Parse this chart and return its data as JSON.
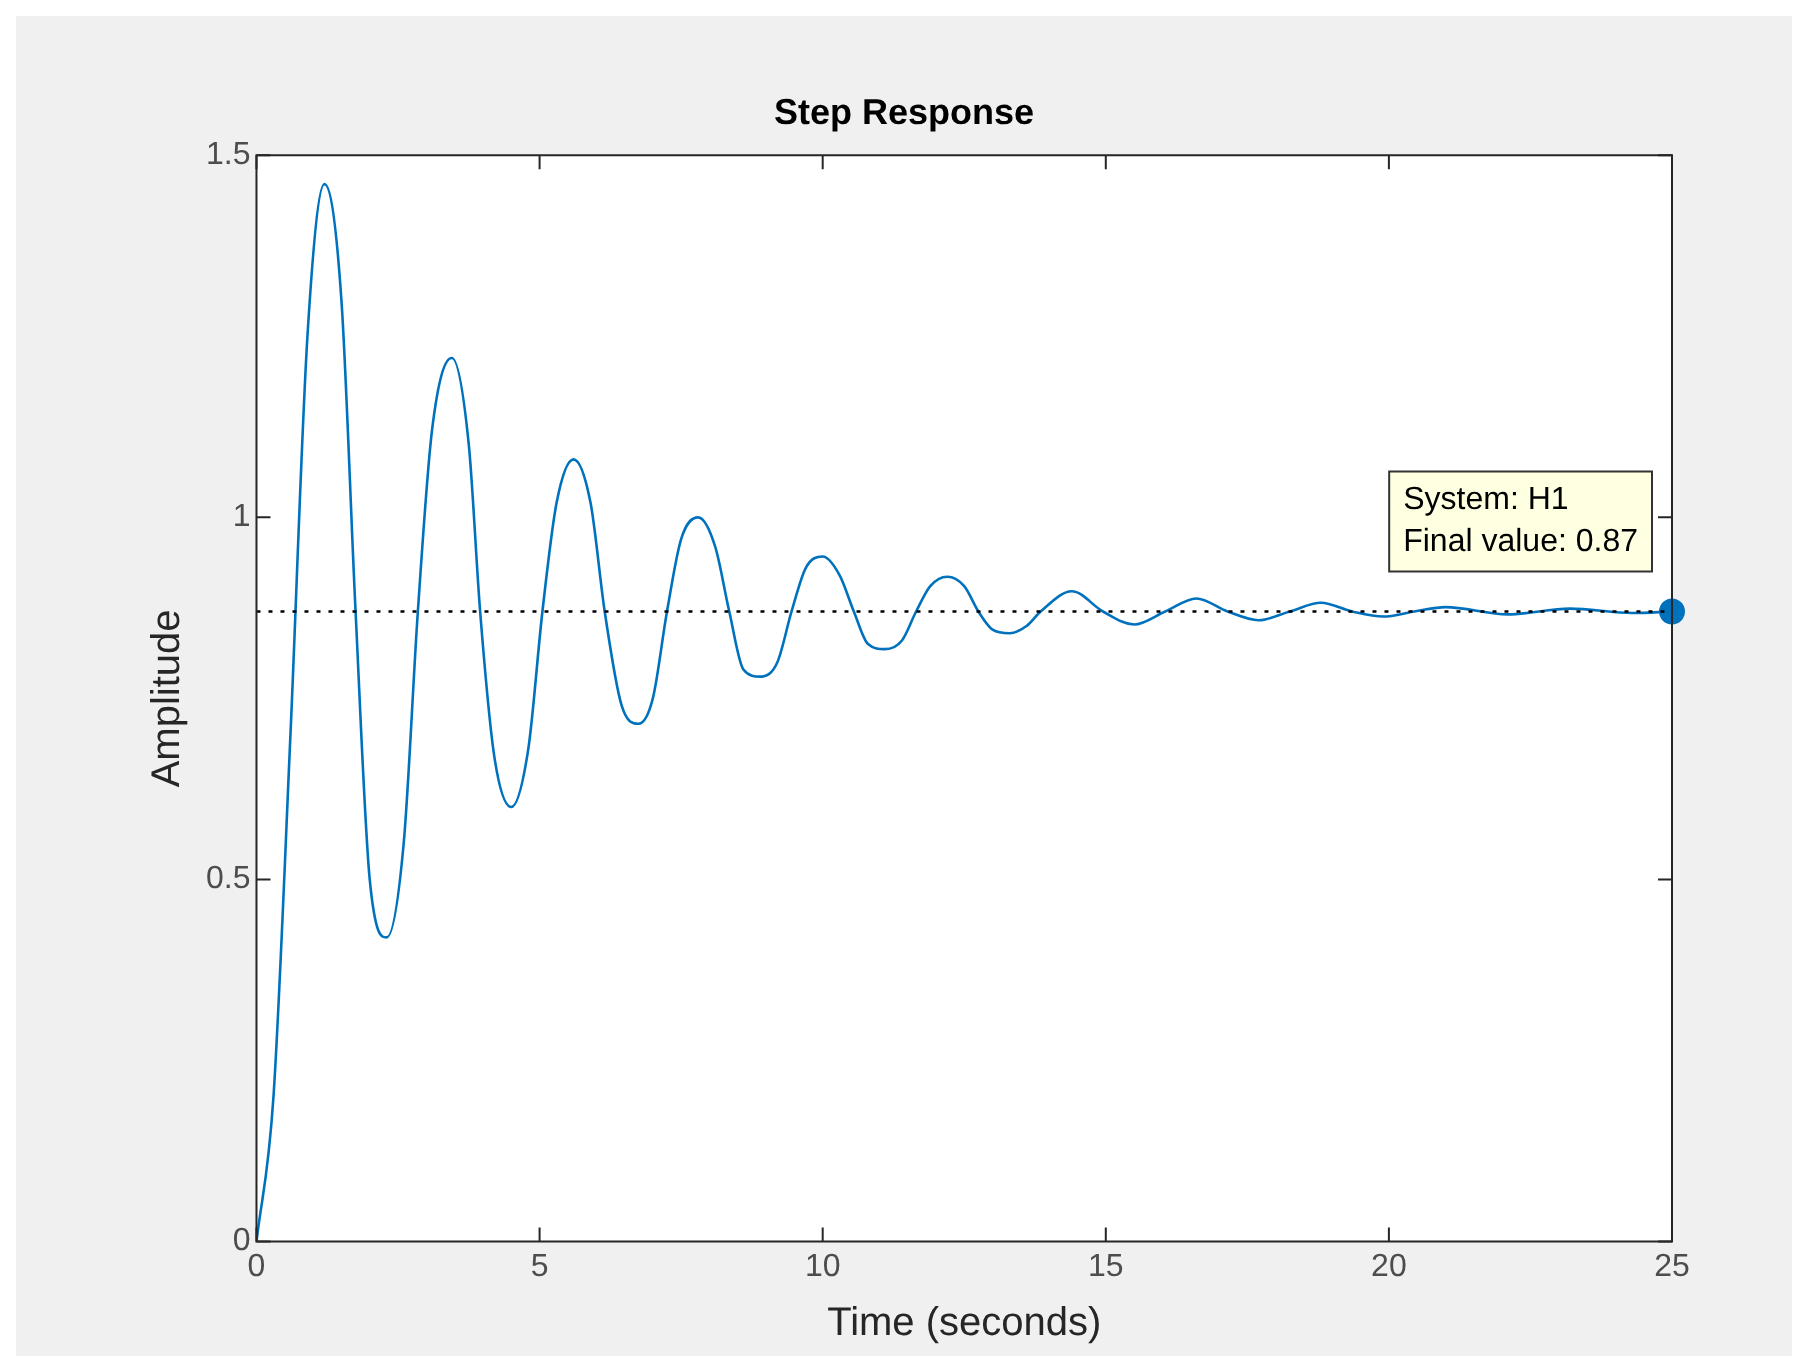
{
  "chart_data": {
    "type": "line",
    "title": "Step Response",
    "xlabel": "Time (seconds)",
    "ylabel": "Amplitude",
    "x": [
      0,
      0.3,
      0.6,
      0.9,
      1.2,
      1.5,
      1.75,
      2.0,
      2.3,
      2.6,
      2.85,
      3.1,
      3.45,
      3.75,
      3.95,
      4.2,
      4.5,
      4.8,
      5.05,
      5.3,
      5.6,
      5.9,
      6.15,
      6.45,
      6.75,
      7.0,
      7.25,
      7.5,
      7.8,
      8.1,
      8.35,
      8.6,
      8.9,
      9.2,
      9.45,
      9.7,
      10.0,
      10.3,
      10.55,
      10.8,
      11.1,
      11.4,
      11.65,
      11.9,
      12.2,
      12.5,
      12.75,
      13.0,
      13.3,
      13.6,
      13.85,
      14.4,
      14.95,
      15.5,
      16.05,
      16.6,
      17.15,
      17.7,
      18.25,
      18.8,
      19.35,
      19.9,
      20.45,
      21.0,
      22.1,
      23.2,
      24.3,
      25
    ],
    "series": [
      {
        "color": "#0072bd",
        "marker": "none",
        "values": [
          0,
          0.2,
          0.7,
          1.25,
          1.46,
          1.3,
          0.87,
          0.5,
          0.42,
          0.55,
          0.87,
          1.12,
          1.22,
          1.1,
          0.87,
          0.67,
          0.6,
          0.68,
          0.87,
          1.02,
          1.08,
          1.02,
          0.87,
          0.74,
          0.715,
          0.75,
          0.87,
          0.97,
          1.0,
          0.96,
          0.87,
          0.79,
          0.78,
          0.8,
          0.87,
          0.93,
          0.946,
          0.92,
          0.87,
          0.825,
          0.818,
          0.83,
          0.87,
          0.905,
          0.918,
          0.905,
          0.87,
          0.845,
          0.84,
          0.85,
          0.87,
          0.898,
          0.87,
          0.852,
          0.87,
          0.888,
          0.87,
          0.858,
          0.87,
          0.882,
          0.87,
          0.863,
          0.87,
          0.876,
          0.866,
          0.874,
          0.868,
          0.87
        ]
      },
      {
        "type": "scatter",
        "color": "#0072bd",
        "marker": "circle",
        "x": [
          25
        ],
        "values": [
          0.87
        ]
      }
    ],
    "xlim": [
      0,
      25
    ],
    "xticks": [
      0,
      5,
      10,
      15,
      20,
      25
    ],
    "ylim": [
      0,
      1.5
    ],
    "yticks": [
      0,
      0.5,
      1,
      1.5
    ],
    "ref_lines": [
      {
        "axis": "y",
        "value": 0.87,
        "color": "#000000",
        "line_style": "dotted"
      }
    ],
    "annotations": [
      "System: H1",
      "Final value: 0.87"
    ]
  }
}
